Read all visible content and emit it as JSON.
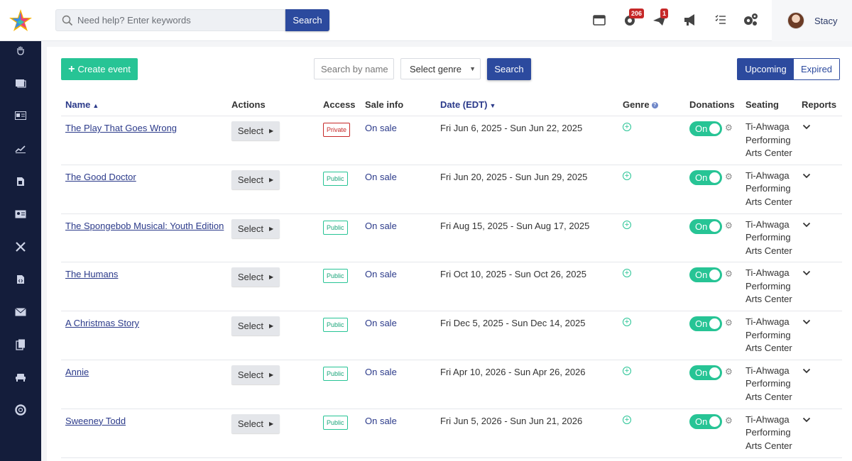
{
  "header": {
    "search_placeholder": "Need help? Enter keywords",
    "search_button": "Search",
    "notifications_count": "206",
    "messages_count": "1",
    "user_name": "Stacy"
  },
  "toolbar": {
    "create_label": "Create event",
    "name_placeholder": "Search by name",
    "genre_select": "Select genre",
    "search_button": "Search",
    "segment_upcoming": "Upcoming",
    "segment_expired": "Expired"
  },
  "table": {
    "headers": {
      "name": "Name",
      "actions": "Actions",
      "access": "Access",
      "sale_info": "Sale info",
      "date": "Date (EDT)",
      "genre": "Genre",
      "donations": "Donations",
      "seating": "Seating",
      "reports": "Reports"
    },
    "rows": [
      {
        "name": "The Play That Goes Wrong",
        "select": "Select",
        "access": "Private",
        "sale": "On sale",
        "date": "Fri Jun 6, 2025 - Sun Jun 22, 2025",
        "donation": "On",
        "seating": "Ti-Ahwaga Performing Arts Center"
      },
      {
        "name": "The Good Doctor",
        "select": "Select",
        "access": "Public",
        "sale": "On sale",
        "date": "Fri Jun 20, 2025 - Sun Jun 29, 2025",
        "donation": "On",
        "seating": "Ti-Ahwaga Performing Arts Center"
      },
      {
        "name": "The Spongebob Musical: Youth Edition",
        "select": "Select",
        "access": "Public",
        "sale": "On sale",
        "date": "Fri Aug 15, 2025 - Sun Aug 17, 2025",
        "donation": "On",
        "seating": "Ti-Ahwaga Performing Arts Center"
      },
      {
        "name": "The Humans",
        "select": "Select",
        "access": "Public",
        "sale": "On sale",
        "date": "Fri Oct 10, 2025 - Sun Oct 26, 2025",
        "donation": "On",
        "seating": "Ti-Ahwaga Performing Arts Center"
      },
      {
        "name": "A Christmas Story",
        "select": "Select",
        "access": "Public",
        "sale": "On sale",
        "date": "Fri Dec 5, 2025 - Sun Dec 14, 2025",
        "donation": "On",
        "seating": "Ti-Ahwaga Performing Arts Center"
      },
      {
        "name": "Annie",
        "select": "Select",
        "access": "Public",
        "sale": "On sale",
        "date": "Fri Apr 10, 2026 - Sun Apr 26, 2026",
        "donation": "On",
        "seating": "Ti-Ahwaga Performing Arts Center"
      },
      {
        "name": "Sweeney Todd",
        "select": "Select",
        "access": "Public",
        "sale": "On sale",
        "date": "Fri Jun 5, 2026 - Sun Jun 21, 2026",
        "donation": "On",
        "seating": "Ti-Ahwaga Performing Arts Center"
      }
    ]
  },
  "icons": {
    "sidebar": [
      "hand-icon",
      "ticket-icon",
      "id-card-icon",
      "chart-icon",
      "document-icon",
      "contact-card-icon",
      "tools-icon",
      "code-file-icon",
      "mail-icon",
      "copy-icon",
      "seat-icon",
      "support-icon"
    ],
    "top": [
      "window-icon",
      "notifications-icon",
      "messages-icon",
      "megaphone-icon",
      "checklist-icon",
      "settings-icon"
    ]
  },
  "colors": {
    "primary": "#2c4a9e",
    "accent_green": "#27c495",
    "sidebar_bg": "#141d3b",
    "private_red": "#c62828"
  }
}
